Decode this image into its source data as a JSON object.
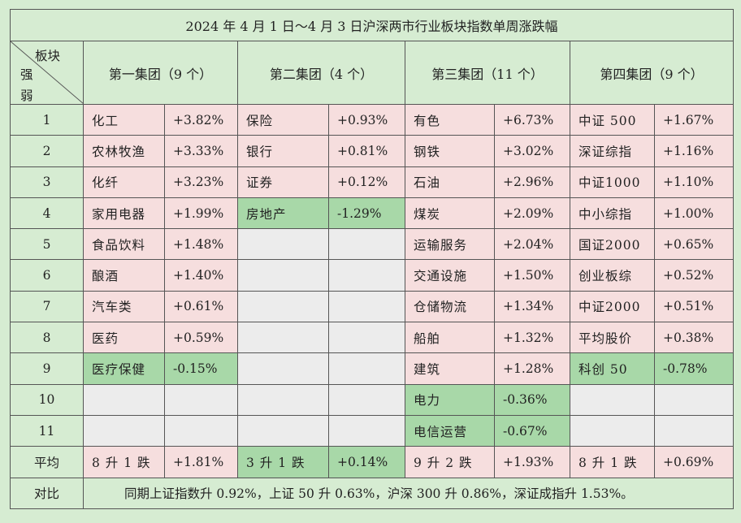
{
  "title": "2024 年 4 月 1 日～4 月 3 日沪深两市行业板块指数单周涨跌幅",
  "corner": {
    "top": "板块",
    "bottom1": "强",
    "bottom2": "弱"
  },
  "groups": [
    {
      "label": "第一集团（9 个）"
    },
    {
      "label": "第二集团（4 个）"
    },
    {
      "label": "第三集团（11 个）"
    },
    {
      "label": "第四集团（9 个）"
    }
  ],
  "rows": [
    {
      "rank": "1",
      "cells": [
        {
          "name": "化工",
          "value": "+3.82%",
          "color": "pink"
        },
        {
          "name": "保险",
          "value": "+0.93%",
          "color": "pink"
        },
        {
          "name": "有色",
          "value": "+6.73%",
          "color": "pink"
        },
        {
          "name": "中证 500",
          "value": "+1.67%",
          "color": "pink"
        }
      ]
    },
    {
      "rank": "2",
      "cells": [
        {
          "name": "农林牧渔",
          "value": "+3.33%",
          "color": "pink"
        },
        {
          "name": "银行",
          "value": "+0.81%",
          "color": "pink"
        },
        {
          "name": "钢铁",
          "value": "+3.02%",
          "color": "pink"
        },
        {
          "name": "深证综指",
          "value": "+1.16%",
          "color": "pink"
        }
      ]
    },
    {
      "rank": "3",
      "cells": [
        {
          "name": "化纤",
          "value": "+3.23%",
          "color": "pink"
        },
        {
          "name": "证券",
          "value": "+0.12%",
          "color": "pink"
        },
        {
          "name": "石油",
          "value": "+2.96%",
          "color": "pink"
        },
        {
          "name": "中证1000",
          "value": "+1.10%",
          "color": "pink"
        }
      ]
    },
    {
      "rank": "4",
      "cells": [
        {
          "name": "家用电器",
          "value": "+1.99%",
          "color": "pink"
        },
        {
          "name": "房地产",
          "value": "-1.29%",
          "color": "green"
        },
        {
          "name": "煤炭",
          "value": "+2.09%",
          "color": "pink"
        },
        {
          "name": "中小综指",
          "value": "+1.00%",
          "color": "pink"
        }
      ]
    },
    {
      "rank": "5",
      "cells": [
        {
          "name": "食品饮料",
          "value": "+1.48%",
          "color": "pink"
        },
        {
          "name": "",
          "value": "",
          "color": "gray"
        },
        {
          "name": "运输服务",
          "value": "+2.04%",
          "color": "pink"
        },
        {
          "name": "国证2000",
          "value": "+0.65%",
          "color": "pink"
        }
      ]
    },
    {
      "rank": "6",
      "cells": [
        {
          "name": "酿酒",
          "value": "+1.40%",
          "color": "pink"
        },
        {
          "name": "",
          "value": "",
          "color": "gray"
        },
        {
          "name": "交通设施",
          "value": "+1.50%",
          "color": "pink"
        },
        {
          "name": "创业板综",
          "value": "+0.52%",
          "color": "pink"
        }
      ]
    },
    {
      "rank": "7",
      "cells": [
        {
          "name": "汽车类",
          "value": "+0.61%",
          "color": "pink"
        },
        {
          "name": "",
          "value": "",
          "color": "gray"
        },
        {
          "name": "仓储物流",
          "value": "+1.34%",
          "color": "pink"
        },
        {
          "name": "中证2000",
          "value": "+0.51%",
          "color": "pink"
        }
      ]
    },
    {
      "rank": "8",
      "cells": [
        {
          "name": "医药",
          "value": "+0.59%",
          "color": "pink"
        },
        {
          "name": "",
          "value": "",
          "color": "gray"
        },
        {
          "name": "船舶",
          "value": "+1.32%",
          "color": "pink"
        },
        {
          "name": "平均股价",
          "value": "+0.38%",
          "color": "pink"
        }
      ]
    },
    {
      "rank": "9",
      "cells": [
        {
          "name": "医疗保健",
          "value": "-0.15%",
          "color": "green"
        },
        {
          "name": "",
          "value": "",
          "color": "gray"
        },
        {
          "name": "建筑",
          "value": "+1.28%",
          "color": "pink"
        },
        {
          "name": "科创 50",
          "value": "-0.78%",
          "color": "green"
        }
      ]
    },
    {
      "rank": "10",
      "cells": [
        {
          "name": "",
          "value": "",
          "color": "gray"
        },
        {
          "name": "",
          "value": "",
          "color": "gray"
        },
        {
          "name": "电力",
          "value": "-0.36%",
          "color": "green"
        },
        {
          "name": "",
          "value": "",
          "color": "gray"
        }
      ]
    },
    {
      "rank": "11",
      "cells": [
        {
          "name": "",
          "value": "",
          "color": "gray"
        },
        {
          "name": "",
          "value": "",
          "color": "gray"
        },
        {
          "name": "电信运营",
          "value": "-0.67%",
          "color": "green"
        },
        {
          "name": "",
          "value": "",
          "color": "gray"
        }
      ]
    }
  ],
  "average": {
    "label": "平均",
    "cells": [
      {
        "name": "8 升 1 跌",
        "value": "+1.81%",
        "color": "pink"
      },
      {
        "name": "3 升 1 跌",
        "value": "+0.14%",
        "color": "green"
      },
      {
        "name": "9 升 2 跌",
        "value": "+1.93%",
        "color": "pink"
      },
      {
        "name": "8 升 1 跌",
        "value": "+0.69%",
        "color": "pink"
      }
    ]
  },
  "comparison": {
    "label": "对比",
    "text": "同期上证指数升 0.92%，上证 50 升 0.63%，沪深 300 升 0.86%，深证成指升 1.53%。"
  },
  "colors": {
    "background": "#d6ecd2",
    "up": "#f6dede",
    "down": "#a8d8a8",
    "empty": "#ececec"
  }
}
